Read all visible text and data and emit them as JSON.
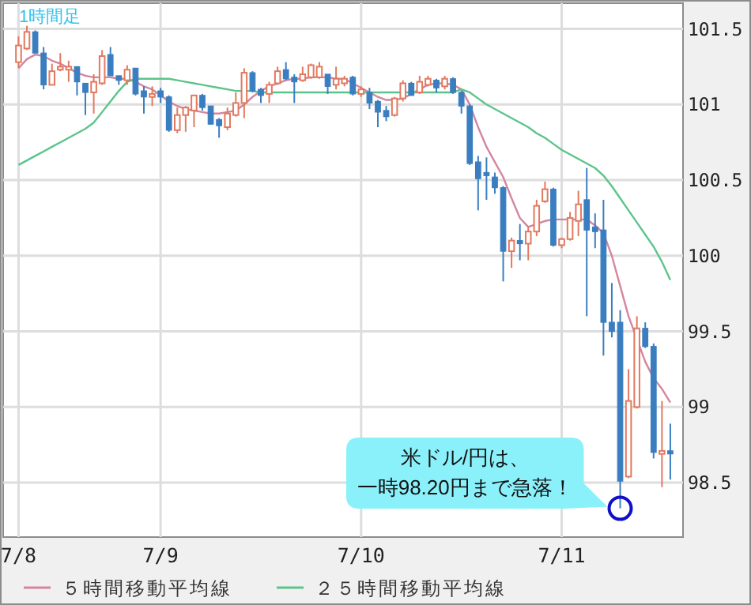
{
  "chart_data": {
    "type": "candlestick",
    "title": "1時間足",
    "categories": [
      "7/8",
      null,
      null,
      null,
      null,
      null,
      null,
      null,
      null,
      null,
      null,
      null,
      null,
      null,
      null,
      null,
      null,
      "7/9",
      null,
      null,
      null,
      null,
      null,
      null,
      null,
      null,
      null,
      null,
      null,
      null,
      null,
      null,
      null,
      null,
      null,
      null,
      null,
      null,
      null,
      null,
      null,
      "7/10",
      null,
      null,
      null,
      null,
      null,
      null,
      null,
      null,
      null,
      null,
      null,
      null,
      null,
      null,
      null,
      null,
      null,
      null,
      null,
      null,
      null,
      null,
      null,
      "7/11",
      null,
      null,
      null,
      null,
      null,
      null,
      null,
      null,
      null,
      null,
      null,
      null,
      null
    ],
    "ohlc": [
      [
        101.28,
        101.45,
        101.24,
        101.39
      ],
      [
        101.37,
        101.52,
        101.36,
        101.48
      ],
      [
        101.48,
        101.49,
        101.34,
        101.34
      ],
      [
        101.34,
        101.38,
        101.1,
        101.13
      ],
      [
        101.13,
        101.27,
        101.13,
        101.22
      ],
      [
        101.23,
        101.34,
        101.22,
        101.25
      ],
      [
        101.23,
        101.29,
        101.15,
        101.25
      ],
      [
        101.25,
        101.25,
        101.06,
        101.15
      ],
      [
        101.14,
        101.14,
        100.93,
        101.08
      ],
      [
        101.08,
        101.2,
        100.94,
        101.15
      ],
      [
        101.14,
        101.36,
        101.13,
        101.32
      ],
      [
        101.33,
        101.38,
        101.19,
        101.19
      ],
      [
        101.19,
        101.19,
        101.13,
        101.16
      ],
      [
        101.16,
        101.26,
        101.13,
        101.23
      ],
      [
        101.24,
        101.24,
        101.06,
        101.07
      ],
      [
        101.09,
        101.12,
        100.94,
        101.05
      ],
      [
        101.05,
        101.12,
        100.99,
        101.07
      ],
      [
        101.09,
        101.11,
        101.01,
        101.05
      ],
      [
        101.05,
        101.06,
        100.82,
        100.83
      ],
      [
        100.83,
        100.98,
        100.81,
        100.93
      ],
      [
        100.93,
        100.99,
        100.82,
        100.98
      ],
      [
        100.96,
        101.06,
        100.85,
        101.06
      ],
      [
        101.06,
        101.07,
        100.96,
        100.98
      ],
      [
        100.99,
        100.99,
        100.87,
        100.87
      ],
      [
        100.9,
        100.91,
        100.78,
        100.86
      ],
      [
        100.85,
        100.98,
        100.83,
        100.94
      ],
      [
        100.93,
        101.08,
        100.92,
        101.01
      ],
      [
        101.01,
        101.24,
        100.91,
        101.21
      ],
      [
        101.21,
        101.22,
        101.08,
        101.09
      ],
      [
        101.1,
        101.11,
        101.01,
        101.06
      ],
      [
        101.07,
        101.15,
        101.01,
        101.13
      ],
      [
        101.14,
        101.25,
        101.13,
        101.22
      ],
      [
        101.23,
        101.28,
        101.16,
        101.17
      ],
      [
        101.18,
        101.2,
        101.01,
        101.15
      ],
      [
        101.16,
        101.25,
        101.15,
        101.2
      ],
      [
        101.18,
        101.27,
        101.17,
        101.26
      ],
      [
        101.18,
        101.28,
        101.17,
        101.25
      ],
      [
        101.2,
        101.2,
        101.07,
        101.12
      ],
      [
        101.13,
        101.25,
        101.1,
        101.17
      ],
      [
        101.14,
        101.19,
        101.12,
        101.17
      ],
      [
        101.18,
        101.19,
        101.06,
        101.07
      ],
      [
        101.07,
        101.12,
        101.05,
        101.1
      ],
      [
        101.08,
        101.11,
        100.97,
        101.01
      ],
      [
        101.02,
        101.03,
        100.85,
        100.95
      ],
      [
        100.96,
        100.99,
        100.89,
        100.92
      ],
      [
        100.93,
        101.05,
        100.92,
        101.04
      ],
      [
        101.04,
        101.16,
        101.02,
        101.14
      ],
      [
        101.14,
        101.15,
        101.06,
        101.06
      ],
      [
        101.08,
        101.19,
        101.07,
        101.15
      ],
      [
        101.13,
        101.19,
        101.12,
        101.17
      ],
      [
        101.16,
        101.17,
        101.08,
        101.11
      ],
      [
        101.12,
        101.19,
        101.1,
        101.17
      ],
      [
        101.17,
        101.18,
        101.07,
        101.08
      ],
      [
        101.08,
        101.09,
        100.94,
        100.99
      ],
      [
        100.99,
        101.0,
        100.6,
        100.61
      ],
      [
        100.62,
        100.66,
        100.3,
        100.51
      ],
      [
        100.55,
        100.65,
        100.37,
        100.53
      ],
      [
        100.52,
        100.55,
        100.41,
        100.45
      ],
      [
        100.45,
        100.46,
        99.83,
        100.03
      ],
      [
        100.03,
        100.12,
        99.92,
        100.1
      ],
      [
        100.1,
        100.21,
        99.97,
        100.08
      ],
      [
        100.08,
        100.19,
        99.97,
        100.16
      ],
      [
        100.16,
        100.37,
        100.13,
        100.33
      ],
      [
        100.36,
        100.49,
        100.35,
        100.44
      ],
      [
        100.44,
        100.45,
        100.06,
        100.07
      ],
      [
        100.07,
        100.12,
        100.05,
        100.11
      ],
      [
        100.11,
        100.29,
        100.1,
        100.25
      ],
      [
        100.23,
        100.43,
        100.13,
        100.34
      ],
      [
        100.37,
        100.58,
        99.6,
        100.17
      ],
      [
        100.19,
        100.28,
        100.05,
        100.16
      ],
      [
        100.17,
        100.37,
        99.34,
        99.56
      ],
      [
        99.56,
        99.82,
        99.46,
        99.5
      ],
      [
        99.56,
        99.64,
        98.33,
        98.51
      ],
      [
        98.54,
        99.25,
        98.53,
        99.04
      ],
      [
        99.0,
        99.6,
        98.99,
        99.52
      ],
      [
        99.52,
        99.56,
        99.39,
        99.4
      ],
      [
        99.4,
        99.42,
        98.66,
        98.7
      ],
      [
        98.69,
        99.04,
        98.47,
        98.71
      ],
      [
        98.71,
        98.89,
        98.52,
        98.69
      ]
    ],
    "colors": [
      "#e2795f",
      "#e2795f",
      "#3b7ec0",
      "#3b7ec0",
      "#e2795f",
      "#e2795f",
      "#e2795f",
      "#3b7ec0",
      "#3b7ec0",
      "#e2795f",
      "#e2795f",
      "#3b7ec0",
      "#3b7ec0",
      "#e2795f",
      "#3b7ec0",
      "#3b7ec0",
      "#e2795f",
      "#3b7ec0",
      "#3b7ec0",
      "#e2795f",
      "#e2795f",
      "#e2795f",
      "#3b7ec0",
      "#3b7ec0",
      "#3b7ec0",
      "#e2795f",
      "#e2795f",
      "#e2795f",
      "#3b7ec0",
      "#3b7ec0",
      "#e2795f",
      "#e2795f",
      "#3b7ec0",
      "#3b7ec0",
      "#e2795f",
      "#e2795f",
      "#e2795f",
      "#3b7ec0",
      "#e2795f",
      "#e2795f",
      "#3b7ec0",
      "#e2795f",
      "#3b7ec0",
      "#3b7ec0",
      "#3b7ec0",
      "#e2795f",
      "#e2795f",
      "#3b7ec0",
      "#e2795f",
      "#e2795f",
      "#3b7ec0",
      "#e2795f",
      "#3b7ec0",
      "#3b7ec0",
      "#3b7ec0",
      "#3b7ec0",
      "#3b7ec0",
      "#3b7ec0",
      "#3b7ec0",
      "#e2795f",
      "#3b7ec0",
      "#e2795f",
      "#e2795f",
      "#e2795f",
      "#3b7ec0",
      "#e2795f",
      "#e2795f",
      "#e2795f",
      "#3b7ec0",
      "#3b7ec0",
      "#3b7ec0",
      "#3b7ec0",
      "#3b7ec0",
      "#e2795f",
      "#e2795f",
      "#3b7ec0",
      "#3b7ec0",
      "#e2795f",
      "#3b7ec0"
    ],
    "series": [
      {
        "name": "５時間移動平均線",
        "type": "line",
        "color": "#d4869e",
        "values": [
          101.24,
          101.3,
          101.33,
          101.32,
          101.29,
          101.27,
          101.24,
          101.21,
          101.19,
          101.18,
          101.18,
          101.18,
          101.17,
          101.17,
          101.15,
          101.12,
          101.1,
          101.06,
          101.02,
          100.99,
          100.97,
          100.96,
          100.95,
          100.94,
          100.94,
          100.95,
          100.96,
          101.0,
          101.05,
          101.09,
          101.12,
          101.14,
          101.16,
          101.17,
          101.17,
          101.18,
          101.18,
          101.18,
          101.17,
          101.17,
          101.14,
          101.11,
          101.08,
          101.05,
          101.03,
          101.03,
          101.04,
          101.07,
          101.1,
          101.13,
          101.14,
          101.14,
          101.13,
          101.1,
          101.0,
          100.85,
          100.72,
          100.62,
          100.52,
          100.38,
          100.25,
          100.19,
          100.21,
          100.23,
          100.24,
          100.24,
          100.24,
          100.24,
          100.24,
          100.2,
          100.15,
          100.0,
          99.8,
          99.6,
          99.45,
          99.3,
          99.19,
          99.12,
          99.03
        ]
      },
      {
        "name": "２５時間移動平均線",
        "type": "line",
        "color": "#5cc48a",
        "values": [
          100.6,
          100.63,
          100.66,
          100.69,
          100.72,
          100.75,
          100.78,
          100.81,
          100.84,
          100.88,
          100.95,
          101.02,
          101.09,
          101.15,
          101.17,
          101.17,
          101.17,
          101.17,
          101.17,
          101.16,
          101.15,
          101.14,
          101.13,
          101.12,
          101.11,
          101.1,
          101.09,
          101.09,
          101.09,
          101.08,
          101.08,
          101.08,
          101.08,
          101.08,
          101.08,
          101.08,
          101.08,
          101.08,
          101.08,
          101.08,
          101.08,
          101.08,
          101.08,
          101.08,
          101.08,
          101.08,
          101.08,
          101.08,
          101.08,
          101.08,
          101.08,
          101.08,
          101.08,
          101.1,
          101.08,
          101.04,
          101.0,
          100.97,
          100.94,
          100.91,
          100.88,
          100.85,
          100.81,
          100.78,
          100.74,
          100.7,
          100.67,
          100.64,
          100.61,
          100.58,
          100.53,
          100.46,
          100.38,
          100.3,
          100.22,
          100.14,
          100.06,
          99.96,
          99.84
        ]
      }
    ],
    "annotations": [
      "米ドル/円は、",
      "一時98.20円まで急落！"
    ],
    "ylim": [
      98.14,
      101.67
    ],
    "yticks": [
      98.5,
      99,
      99.5,
      100,
      100.5,
      101,
      101.5
    ],
    "grid": true,
    "legend": "bottom"
  }
}
